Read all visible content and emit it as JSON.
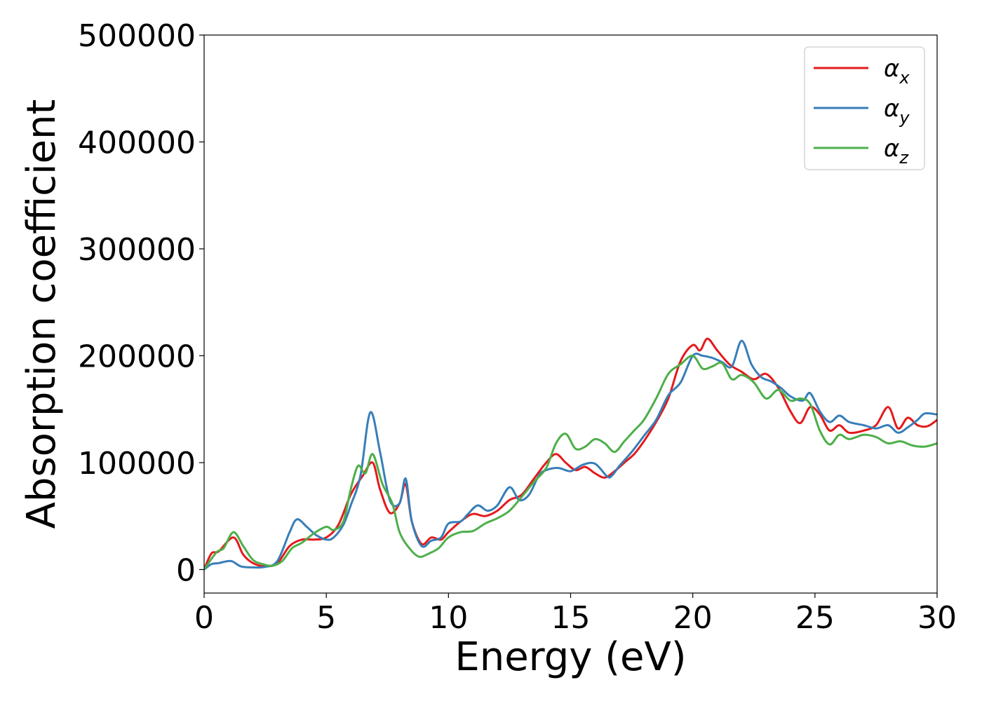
{
  "chart_data": {
    "type": "line",
    "title": "",
    "xlabel": "Energy (eV)",
    "ylabel": "Absorption coefficient",
    "xlim": [
      0,
      30
    ],
    "ylim": [
      -22000,
      500000
    ],
    "xticks": [
      0,
      5,
      10,
      15,
      20,
      25,
      30
    ],
    "yticks": [
      0,
      100000,
      200000,
      300000,
      400000,
      500000
    ],
    "grid": false,
    "legend_position": "top-right",
    "series": [
      {
        "name": "α",
        "subscript": "x",
        "color": "#e41a1c",
        "points": [
          [
            0,
            0
          ],
          [
            0.3,
            15000
          ],
          [
            0.6,
            17000
          ],
          [
            1.2,
            30000
          ],
          [
            1.6,
            14000
          ],
          [
            2.0,
            6000
          ],
          [
            2.5,
            3000
          ],
          [
            3.0,
            6000
          ],
          [
            3.5,
            22000
          ],
          [
            4.0,
            28000
          ],
          [
            4.5,
            28000
          ],
          [
            5.0,
            30000
          ],
          [
            5.5,
            42000
          ],
          [
            6.0,
            70000
          ],
          [
            6.5,
            88000
          ],
          [
            6.9,
            100000
          ],
          [
            7.2,
            75000
          ],
          [
            7.6,
            53000
          ],
          [
            8.0,
            62000
          ],
          [
            8.25,
            80000
          ],
          [
            8.5,
            45000
          ],
          [
            8.9,
            24000
          ],
          [
            9.3,
            30000
          ],
          [
            9.7,
            28000
          ],
          [
            10.0,
            35000
          ],
          [
            10.5,
            45000
          ],
          [
            11.0,
            52000
          ],
          [
            11.5,
            50000
          ],
          [
            12.0,
            55000
          ],
          [
            12.5,
            65000
          ],
          [
            13.0,
            70000
          ],
          [
            13.5,
            85000
          ],
          [
            14.0,
            100000
          ],
          [
            14.4,
            108000
          ],
          [
            14.8,
            100000
          ],
          [
            15.2,
            93000
          ],
          [
            15.6,
            96000
          ],
          [
            16.0,
            90000
          ],
          [
            16.4,
            86000
          ],
          [
            16.8,
            92000
          ],
          [
            17.2,
            100000
          ],
          [
            17.6,
            108000
          ],
          [
            18.0,
            120000
          ],
          [
            18.5,
            138000
          ],
          [
            19.0,
            160000
          ],
          [
            19.5,
            195000
          ],
          [
            20.0,
            210000
          ],
          [
            20.3,
            205000
          ],
          [
            20.6,
            216000
          ],
          [
            21.0,
            205000
          ],
          [
            21.5,
            192000
          ],
          [
            22.0,
            185000
          ],
          [
            22.5,
            178000
          ],
          [
            23.0,
            183000
          ],
          [
            23.5,
            170000
          ],
          [
            24.0,
            148000
          ],
          [
            24.4,
            137000
          ],
          [
            24.8,
            152000
          ],
          [
            25.2,
            145000
          ],
          [
            25.6,
            130000
          ],
          [
            26.0,
            135000
          ],
          [
            26.4,
            128000
          ],
          [
            27.0,
            130000
          ],
          [
            27.5,
            135000
          ],
          [
            28.0,
            152000
          ],
          [
            28.4,
            132000
          ],
          [
            28.8,
            142000
          ],
          [
            29.2,
            135000
          ],
          [
            29.6,
            134000
          ],
          [
            30.0,
            140000
          ]
        ]
      },
      {
        "name": "α",
        "subscript": "y",
        "color": "#377eb8",
        "points": [
          [
            0,
            0
          ],
          [
            0.3,
            5000
          ],
          [
            0.6,
            6000
          ],
          [
            1.1,
            8000
          ],
          [
            1.5,
            3000
          ],
          [
            2.0,
            2000
          ],
          [
            2.5,
            2500
          ],
          [
            3.0,
            8000
          ],
          [
            3.5,
            35000
          ],
          [
            3.8,
            47000
          ],
          [
            4.2,
            40000
          ],
          [
            4.6,
            32000
          ],
          [
            5.0,
            28000
          ],
          [
            5.3,
            30000
          ],
          [
            5.7,
            42000
          ],
          [
            6.0,
            60000
          ],
          [
            6.4,
            88000
          ],
          [
            6.8,
            147000
          ],
          [
            7.2,
            110000
          ],
          [
            7.6,
            65000
          ],
          [
            8.0,
            62000
          ],
          [
            8.25,
            85000
          ],
          [
            8.5,
            45000
          ],
          [
            8.9,
            22000
          ],
          [
            9.3,
            27000
          ],
          [
            9.7,
            30000
          ],
          [
            10.0,
            43000
          ],
          [
            10.5,
            45000
          ],
          [
            10.8,
            52000
          ],
          [
            11.2,
            60000
          ],
          [
            11.6,
            55000
          ],
          [
            12.0,
            60000
          ],
          [
            12.5,
            77000
          ],
          [
            12.9,
            65000
          ],
          [
            13.3,
            70000
          ],
          [
            13.7,
            88000
          ],
          [
            14.0,
            93000
          ],
          [
            14.5,
            95000
          ],
          [
            15.0,
            92000
          ],
          [
            15.5,
            98000
          ],
          [
            16.0,
            99000
          ],
          [
            16.5,
            87000
          ],
          [
            16.7,
            88000
          ],
          [
            17.0,
            97000
          ],
          [
            17.5,
            110000
          ],
          [
            18.0,
            125000
          ],
          [
            18.5,
            140000
          ],
          [
            19.0,
            163000
          ],
          [
            19.5,
            175000
          ],
          [
            20.0,
            200000
          ],
          [
            20.4,
            200000
          ],
          [
            20.8,
            198000
          ],
          [
            21.2,
            194000
          ],
          [
            21.6,
            190000
          ],
          [
            22.0,
            214000
          ],
          [
            22.4,
            192000
          ],
          [
            22.8,
            180000
          ],
          [
            23.2,
            176000
          ],
          [
            23.6,
            170000
          ],
          [
            24.0,
            162000
          ],
          [
            24.5,
            158000
          ],
          [
            24.8,
            165000
          ],
          [
            25.2,
            148000
          ],
          [
            25.6,
            138000
          ],
          [
            26.0,
            144000
          ],
          [
            26.4,
            138000
          ],
          [
            27.0,
            135000
          ],
          [
            27.5,
            132000
          ],
          [
            28.0,
            135000
          ],
          [
            28.4,
            128000
          ],
          [
            28.8,
            133000
          ],
          [
            29.2,
            140000
          ],
          [
            29.5,
            146000
          ],
          [
            30.0,
            145000
          ]
        ]
      },
      {
        "name": "α",
        "subscript": "z",
        "color": "#4daf4a",
        "points": [
          [
            0,
            0
          ],
          [
            0.5,
            16000
          ],
          [
            0.8,
            20000
          ],
          [
            1.2,
            35000
          ],
          [
            1.6,
            22000
          ],
          [
            2.0,
            9000
          ],
          [
            2.4,
            5000
          ],
          [
            2.8,
            3500
          ],
          [
            3.2,
            8000
          ],
          [
            3.6,
            20000
          ],
          [
            4.0,
            25000
          ],
          [
            4.5,
            34000
          ],
          [
            5.0,
            40000
          ],
          [
            5.3,
            37000
          ],
          [
            5.7,
            45000
          ],
          [
            6.0,
            75000
          ],
          [
            6.3,
            97000
          ],
          [
            6.6,
            90000
          ],
          [
            6.9,
            108000
          ],
          [
            7.3,
            80000
          ],
          [
            7.7,
            62000
          ],
          [
            8.0,
            35000
          ],
          [
            8.4,
            20000
          ],
          [
            8.8,
            12000
          ],
          [
            9.2,
            15000
          ],
          [
            9.6,
            20000
          ],
          [
            10.0,
            30000
          ],
          [
            10.5,
            35000
          ],
          [
            11.0,
            36000
          ],
          [
            11.5,
            43000
          ],
          [
            12.0,
            48000
          ],
          [
            12.5,
            55000
          ],
          [
            13.0,
            68000
          ],
          [
            13.5,
            82000
          ],
          [
            14.0,
            95000
          ],
          [
            14.4,
            118000
          ],
          [
            14.8,
            127000
          ],
          [
            15.2,
            113000
          ],
          [
            15.6,
            115000
          ],
          [
            16.0,
            122000
          ],
          [
            16.4,
            118000
          ],
          [
            16.8,
            110000
          ],
          [
            17.2,
            120000
          ],
          [
            17.6,
            130000
          ],
          [
            18.0,
            140000
          ],
          [
            18.5,
            160000
          ],
          [
            19.0,
            183000
          ],
          [
            19.5,
            192000
          ],
          [
            20.0,
            200000
          ],
          [
            20.4,
            188000
          ],
          [
            20.8,
            190000
          ],
          [
            21.2,
            193000
          ],
          [
            21.6,
            178000
          ],
          [
            22.0,
            182000
          ],
          [
            22.5,
            175000
          ],
          [
            23.0,
            160000
          ],
          [
            23.5,
            168000
          ],
          [
            24.0,
            158000
          ],
          [
            24.4,
            160000
          ],
          [
            24.8,
            155000
          ],
          [
            25.2,
            130000
          ],
          [
            25.6,
            117000
          ],
          [
            26.0,
            126000
          ],
          [
            26.4,
            122000
          ],
          [
            27.0,
            126000
          ],
          [
            27.5,
            124000
          ],
          [
            28.0,
            118000
          ],
          [
            28.5,
            120000
          ],
          [
            29.0,
            116000
          ],
          [
            29.5,
            115000
          ],
          [
            30.0,
            118000
          ]
        ]
      }
    ]
  }
}
